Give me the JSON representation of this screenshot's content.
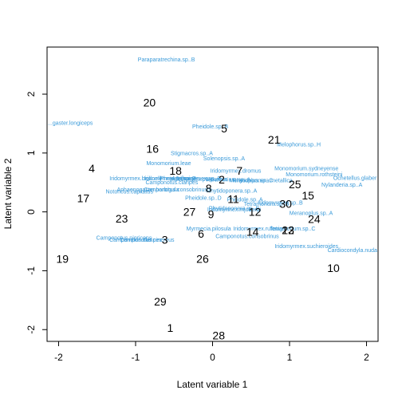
{
  "chart_data": {
    "type": "scatter",
    "title": "",
    "xlabel": "Latent variable  1",
    "ylabel": "Latent variable  2",
    "xlim": [
      -2.15,
      2.15
    ],
    "ylim": [
      -2.2,
      2.8
    ],
    "xticks": [
      "-2",
      "-1",
      "0",
      "1",
      "2"
    ],
    "xtick_values": [
      -2,
      -1,
      0,
      1,
      2
    ],
    "yticks": [
      "-2",
      "-1",
      "0",
      "1",
      "2"
    ],
    "ytick_values": [
      -2,
      -1,
      0,
      1,
      2
    ],
    "grid": false,
    "species_color": "#3a9ad9",
    "site_color": "#000000",
    "sites": [
      {
        "label": "1",
        "x": -0.55,
        "y": -1.97
      },
      {
        "label": "2",
        "x": 0.12,
        "y": 0.55
      },
      {
        "label": "3",
        "x": -0.62,
        "y": -0.47
      },
      {
        "label": "4",
        "x": -1.57,
        "y": 0.74
      },
      {
        "label": "5",
        "x": 0.15,
        "y": 1.42
      },
      {
        "label": "6",
        "x": -0.15,
        "y": -0.37
      },
      {
        "label": "7",
        "x": 0.35,
        "y": 0.7
      },
      {
        "label": "8",
        "x": -0.05,
        "y": 0.4
      },
      {
        "label": "9",
        "x": -0.02,
        "y": -0.04
      },
      {
        "label": "10",
        "x": 1.57,
        "y": -0.95
      },
      {
        "label": "11",
        "x": 0.27,
        "y": 0.22
      },
      {
        "label": "12",
        "x": 0.55,
        "y": 0.0
      },
      {
        "label": "13",
        "x": 0.98,
        "y": -0.31
      },
      {
        "label": "14",
        "x": 0.52,
        "y": -0.34
      },
      {
        "label": "15",
        "x": 1.24,
        "y": 0.28
      },
      {
        "label": "16",
        "x": -0.78,
        "y": 1.07
      },
      {
        "label": "17",
        "x": -1.68,
        "y": 0.23
      },
      {
        "label": "18",
        "x": -0.48,
        "y": 0.7
      },
      {
        "label": "19",
        "x": -1.95,
        "y": -0.8
      },
      {
        "label": "20",
        "x": -0.82,
        "y": 1.86
      },
      {
        "label": "21",
        "x": 0.8,
        "y": 1.23
      },
      {
        "label": "22",
        "x": 0.98,
        "y": -0.31
      },
      {
        "label": "23",
        "x": -1.18,
        "y": -0.11
      },
      {
        "label": "24",
        "x": 1.32,
        "y": -0.12
      },
      {
        "label": "25",
        "x": 1.07,
        "y": 0.47
      },
      {
        "label": "26",
        "x": -0.13,
        "y": -0.8
      },
      {
        "label": "27",
        "x": -0.3,
        "y": 0.0
      },
      {
        "label": "28",
        "x": 0.08,
        "y": -2.1
      },
      {
        "label": "29",
        "x": -0.68,
        "y": -1.52
      },
      {
        "label": "30",
        "x": 0.95,
        "y": 0.14
      }
    ],
    "species": [
      {
        "label": "Paraparatrechina.sp..B",
        "x": -0.6,
        "y": 2.59
      },
      {
        "label": "Pheidole.sp..B",
        "x": -0.03,
        "y": 1.45
      },
      {
        "label": "Melophorus.sp..H",
        "x": 1.12,
        "y": 1.15
      },
      {
        "label": "Stigmacros.sp..A",
        "x": -0.27,
        "y": 1.0
      },
      {
        "label": "Solenopsis.sp..A",
        "x": 0.15,
        "y": 0.91
      },
      {
        "label": "Monomorium.leae",
        "x": -0.57,
        "y": 0.83
      },
      {
        "label": "Iridomyrmex.dromus",
        "x": 0.3,
        "y": 0.7
      },
      {
        "label": "Monomorium.sydneyense",
        "x": 1.22,
        "y": 0.74
      },
      {
        "label": "Monomorium.rothsteini",
        "x": 1.32,
        "y": 0.64
      },
      {
        "label": "Ochetellus.glaber",
        "x": 1.92,
        "y": 0.58
      },
      {
        "label": "Nylanderia.sp..A",
        "x": 1.68,
        "y": 0.46
      },
      {
        "label": "Camponotus.claripes",
        "x": -0.53,
        "y": 0.5
      },
      {
        "label": "Iridomyrmex.bicknelli",
        "x": -1.0,
        "y": 0.57
      },
      {
        "label": "Iridomyrmex.rufoniger",
        "x": -0.54,
        "y": 0.57
      },
      {
        "label": "Pheidole.sp..E",
        "x": -0.45,
        "y": 0.57
      },
      {
        "label": "Iridomyrmex.sp..E",
        "x": -0.18,
        "y": 0.57
      },
      {
        "label": "Tetramorium.sp..A",
        "x": 0.2,
        "y": 0.55
      },
      {
        "label": "Meranoplus.sp..C",
        "x": 0.5,
        "y": 0.54
      },
      {
        "label": "Rhytidoponera.metallica",
        "x": 0.65,
        "y": 0.54
      },
      {
        "label": "Iridomyrmex.purpureus",
        "x": -0.18,
        "y": 0.56
      },
      {
        "label": "Notoncus.capitatus",
        "x": -1.08,
        "y": 0.35
      },
      {
        "label": "Aphaenogaster.barbigula",
        "x": -0.84,
        "y": 0.38
      },
      {
        "label": "Camponotus.consobrinus",
        "x": -0.48,
        "y": 0.38
      },
      {
        "label": "Rhytidoponera.sp..A",
        "x": 0.25,
        "y": 0.36
      },
      {
        "label": "Pheidole.sp..D",
        "x": -0.12,
        "y": 0.24
      },
      {
        "label": "Pheidole.sp..A",
        "x": 0.42,
        "y": 0.21
      },
      {
        "label": "Iridomyrmex.sp..B",
        "x": 0.88,
        "y": 0.16
      },
      {
        "label": "Tetramorium.sp..B",
        "x": 0.7,
        "y": 0.14
      },
      {
        "label": "Rhytidoponera.sp..B",
        "x": 0.28,
        "y": 0.06
      },
      {
        "label": "Iridomyrmex.mjobergi",
        "x": 0.28,
        "y": 0.04
      },
      {
        "label": "Meranoplus.sp..A",
        "x": 1.28,
        "y": -0.02
      },
      {
        "label": "Myrmecia.pilosula",
        "x": -0.05,
        "y": -0.28
      },
      {
        "label": "Iridomyrmex.rufoniger",
        "x": 0.62,
        "y": -0.28
      },
      {
        "label": "Tetramorium.sp..C",
        "x": 1.04,
        "y": -0.28
      },
      {
        "label": "Camponotus.consobrinus",
        "x": 0.45,
        "y": -0.41
      },
      {
        "label": "Camponotus.nigriceps",
        "x": -1.15,
        "y": -0.44
      },
      {
        "label": "Camponotus.claripes",
        "x": -1.0,
        "y": -0.47
      },
      {
        "label": "Camponotus.cinereus",
        "x": -0.85,
        "y": -0.47
      },
      {
        "label": "Iridomyrmex.suchieroides",
        "x": 1.22,
        "y": -0.58
      },
      {
        "label": "Cardiocondyla.nuda",
        "x": 1.83,
        "y": -0.65
      },
      {
        "label": "...gaster.longiceps",
        "x": -2.05,
        "y": 1.51
      }
    ]
  }
}
